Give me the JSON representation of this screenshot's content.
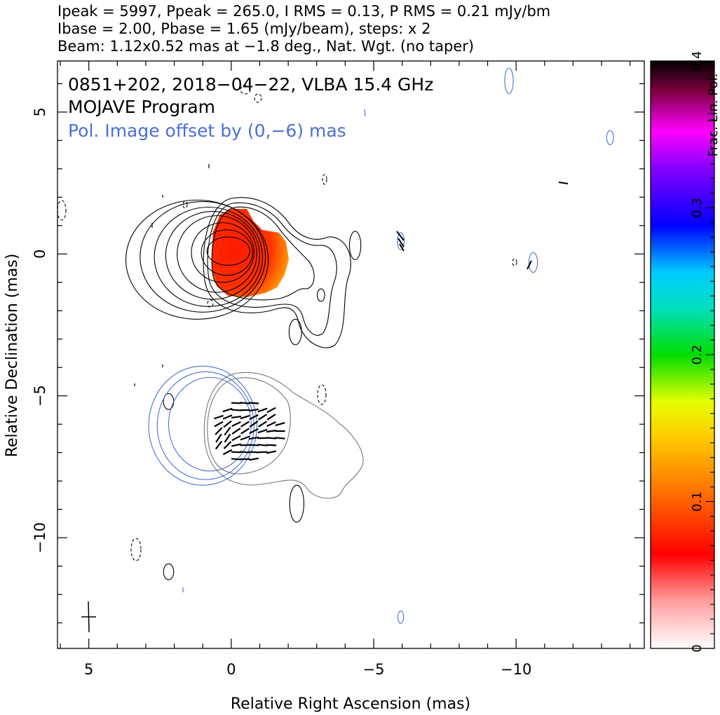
{
  "header": {
    "line1": "Ipeak = 5997, Ppeak = 265.0, I RMS = 0.13, P RMS = 0.21 mJy/bm",
    "line2": "Ibase = 2.00, Pbase = 1.65 (mJy/beam), steps: x 2",
    "line3": "Beam: 1.12x0.52 mas at −1.8 deg., Nat. Wgt. (no taper)"
  },
  "chart_data": {
    "type": "contour",
    "title": "0851+202, 2018−04−22, VLBA 15.4 GHz",
    "subtitle": "MOJAVE Program",
    "annotation": "Pol. Image offset by (0,−6) mas",
    "xlabel": "Relative Right Ascension (mas)",
    "ylabel": "Relative Declination (mas)",
    "xlim": [
      6.1,
      -14.5
    ],
    "ylim": [
      -13.9,
      6.8
    ],
    "x_ticks": [
      5,
      0,
      -5,
      -10
    ],
    "x_tick_labels": [
      "5",
      "0",
      "−5",
      "−10"
    ],
    "y_ticks": [
      5,
      0,
      -5,
      -10
    ],
    "y_tick_labels": [
      "5",
      "0",
      "−5",
      "−10"
    ],
    "colorbar": {
      "label": "Frac. Lin. Pol.",
      "range": [
        0,
        0.4
      ],
      "ticks": [
        0,
        0.1,
        0.2,
        0.3,
        0.4
      ],
      "tick_labels": [
        "0",
        "0.1",
        "0.2",
        "0.3",
        "0.4"
      ]
    },
    "stokes_i_contours": [
      {
        "cx": 0.1,
        "cy": 0.1,
        "rx": 0.75,
        "ry": 0.5
      },
      {
        "cx": 0.15,
        "cy": 0.05,
        "rx": 0.9,
        "ry": 0.8
      },
      {
        "cx": 0.3,
        "cy": 0.05,
        "rx": 1.1,
        "ry": 1.05
      },
      {
        "cx": 0.5,
        "cy": 0.0,
        "rx": 1.4,
        "ry": 1.35
      },
      {
        "cx": 0.65,
        "cy": -0.05,
        "rx": 1.65,
        "ry": 1.55
      },
      {
        "cx": 0.8,
        "cy": -0.1,
        "rx": 1.9,
        "ry": 1.75
      },
      {
        "cx": 1.0,
        "cy": -0.1,
        "rx": 2.2,
        "ry": 1.95
      },
      {
        "cx": 1.2,
        "cy": -0.2,
        "rx": 2.5,
        "ry": 2.1
      },
      {
        "cx": -4.35,
        "cy": 0.3,
        "rx": 0.2,
        "ry": 0.5
      },
      {
        "cx": -2.25,
        "cy": -2.75,
        "rx": 0.22,
        "ry": 0.45
      },
      {
        "cx": -3.15,
        "cy": -1.45,
        "rx": 0.13,
        "ry": 0.22
      },
      {
        "cx": 2.2,
        "cy": -5.2,
        "rx": 0.18,
        "ry": 0.28
      },
      {
        "cx": 2.2,
        "cy": -11.2,
        "rx": 0.18,
        "ry": 0.28
      },
      {
        "cx": -2.3,
        "cy": -8.8,
        "rx": 0.25,
        "ry": 0.65
      }
    ],
    "pol_contours": [
      {
        "cx": 1.0,
        "cy": -6.05,
        "rx": 1.9,
        "ry": 2.1
      },
      {
        "cx": 0.9,
        "cy": -6.05,
        "rx": 1.7,
        "ry": 1.9
      },
      {
        "cx": 0.75,
        "cy": -6.0,
        "rx": 1.45,
        "ry": 1.65
      },
      {
        "cx": -10.6,
        "cy": -0.3,
        "rx": 0.15,
        "ry": 0.35
      },
      {
        "cx": -9.75,
        "cy": 6.1,
        "rx": 0.15,
        "ry": 0.45
      },
      {
        "cx": -13.3,
        "cy": 4.1,
        "rx": 0.12,
        "ry": 0.25
      },
      {
        "cx": -5.95,
        "cy": -12.8,
        "rx": 0.1,
        "ry": 0.22
      },
      {
        "cx": -5.95,
        "cy": 0.45,
        "rx": 0.12,
        "ry": 0.3
      }
    ]
  }
}
